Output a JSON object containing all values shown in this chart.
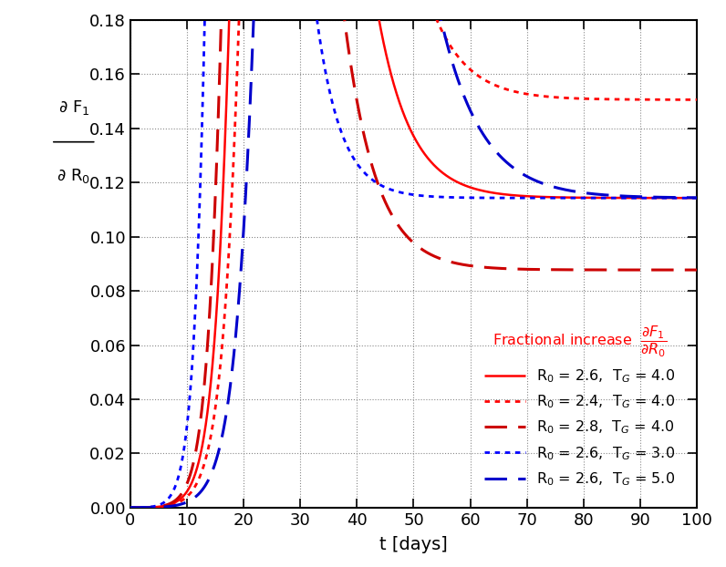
{
  "title": "",
  "xlabel": "t [days]",
  "xlim": [
    0,
    100
  ],
  "ylim": [
    0,
    0.18
  ],
  "yticks": [
    0,
    0.02,
    0.04,
    0.06,
    0.08,
    0.1,
    0.12,
    0.14,
    0.16,
    0.18
  ],
  "xticks": [
    0,
    10,
    20,
    30,
    40,
    50,
    60,
    70,
    80,
    90,
    100
  ],
  "background_color": "#ffffff",
  "grid_color": "#888888",
  "curves": [
    {
      "label": "R$_0$ = 2.6,  T$_G$ = 4.0",
      "color": "#ff0000",
      "linestyle": "solid",
      "linewidth": 1.8,
      "R0": 2.6,
      "TG": 4.0
    },
    {
      "label": "R$_0$ = 2.4,  T$_G$ = 4.0",
      "color": "#ff0000",
      "linestyle": "dotted",
      "linewidth": 2.0,
      "R0": 2.4,
      "TG": 4.0
    },
    {
      "label": "R$_0$ = 2.8,  T$_G$ = 4.0",
      "color": "#cc0000",
      "linestyle": "dashed",
      "linewidth": 2.2,
      "R0": 2.8,
      "TG": 4.0
    },
    {
      "label": "R$_0$ = 2.6,  T$_G$ = 3.0",
      "color": "#0000ff",
      "linestyle": "dotted",
      "linewidth": 2.0,
      "R0": 2.6,
      "TG": 3.0
    },
    {
      "label": "R$_0$ = 2.6,  T$_G$ = 5.0",
      "color": "#0000cc",
      "linestyle": "dashed",
      "linewidth": 2.2,
      "R0": 2.6,
      "TG": 5.0
    }
  ]
}
